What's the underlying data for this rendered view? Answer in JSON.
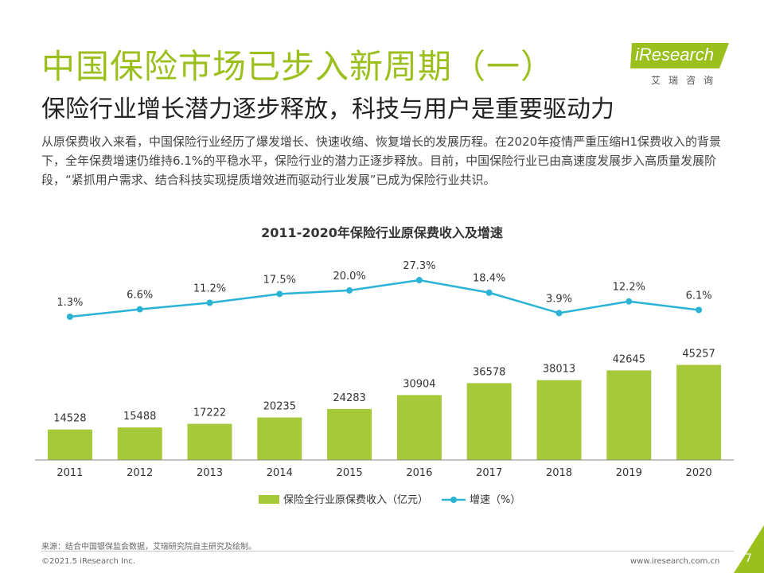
{
  "header": {
    "title": "中国保险市场已步入新周期（一）",
    "subtitle": "保险行业增长潜力逐步释放，科技与用户是重要驱动力",
    "intro": "从原保费收入来看，中国保险行业经历了爆发增长、快速收缩、恢复增长的发展历程。在2020年疫情严重压缩H1保费收入的背景下，全年保费增速仍维持6.1%的平稳水平，保险行业的潜力正逐步释放。目前，中国保险行业已由高速度发展步入高质量发展阶段，“紧抓用户需求、结合科技实现提质增效进而驱动行业发展”已成为保险行业共识。"
  },
  "logo": {
    "name": "iResearch",
    "sub": "艾瑞咨询"
  },
  "chart_data": {
    "type": "bar",
    "title": "2011-2020年保险行业原保费收入及增速",
    "categories": [
      "2011",
      "2012",
      "2013",
      "2014",
      "2015",
      "2016",
      "2017",
      "2018",
      "2019",
      "2020"
    ],
    "series": [
      {
        "name": "保险全行业原保费收入（亿元）",
        "type": "bar",
        "color": "#a6c93a",
        "values": [
          14528,
          15488,
          17222,
          20235,
          24283,
          30904,
          36578,
          38013,
          42645,
          45257
        ],
        "labels": [
          "14528",
          "15488",
          "17222",
          "20235",
          "24283",
          "30904",
          "36578",
          "38013",
          "42645",
          "45257"
        ]
      },
      {
        "name": "增速（%）",
        "type": "line",
        "color": "#2bb3d6",
        "values": [
          1.3,
          6.6,
          11.2,
          17.5,
          20.0,
          27.3,
          18.4,
          3.9,
          12.2,
          6.1
        ],
        "labels": [
          "1.3%",
          "6.6%",
          "11.2%",
          "17.5%",
          "20.0%",
          "27.3%",
          "18.4%",
          "3.9%",
          "12.2%",
          "6.1%"
        ]
      }
    ],
    "ylim_bar": [
      0,
      50000
    ],
    "ylim_line": [
      0,
      30
    ],
    "grid": false,
    "legend_position": "bottom-center"
  },
  "footer": {
    "source": "来源：结合中国银保监会数据，艾瑞研究院自主研究及绘制。",
    "copyright": "©2021.5 iResearch Inc.",
    "url": "www.iresearch.com.cn",
    "page": "7"
  },
  "colors": {
    "accent": "#9bbf1c",
    "bar": "#a6c93a",
    "line": "#2bb3d6"
  }
}
